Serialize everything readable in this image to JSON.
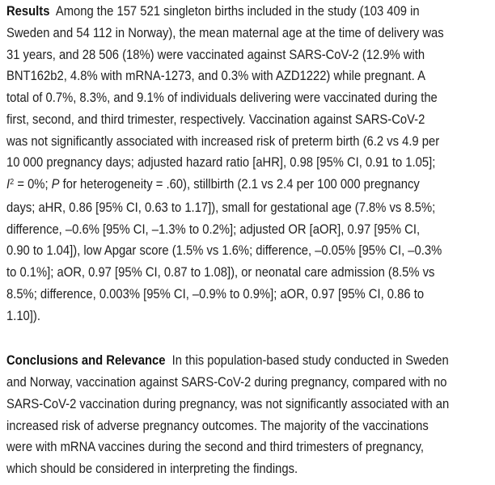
{
  "page": {
    "background_color": "#ffffff",
    "text_color": "#212121"
  },
  "abstract": {
    "sections": [
      {
        "heading": "Results",
        "lines": [
          [
            {
              "t": "Results",
              "b": true
            },
            {
              "t": "  Among the 157 521 singleton births included in the study (103 409 in"
            }
          ],
          [
            {
              "t": "Sweden and 54 112 in Norway), the mean maternal age at the time of delivery was"
            }
          ],
          [
            {
              "t": "31 years, and 28 506 (18%) were vaccinated against SARS-CoV-2 (12.9% with"
            }
          ],
          [
            {
              "t": "BNT162b2, 4.8% with mRNA-1273, and 0.3% with AZD1222) while pregnant. A"
            }
          ],
          [
            {
              "t": "total of 0.7%, 8.3%, and 9.1% of individuals delivering were vaccinated during the"
            }
          ],
          [
            {
              "t": "first, second, and third trimester, respectively. Vaccination against SARS-CoV-2"
            }
          ],
          [
            {
              "t": "was not significantly associated with increased risk of preterm birth (6.2 vs 4.9 per"
            }
          ],
          [
            {
              "t": "10 000 pregnancy days; adjusted hazard ratio [aHR], 0.98 [95% CI, 0.91 to 1.05];"
            }
          ],
          [
            {
              "t": "I",
              "i": true
            },
            {
              "t": "2",
              "sup": true
            },
            {
              "t": " = 0%; "
            },
            {
              "t": "P",
              "i": true
            },
            {
              "t": " for heterogeneity = .60), stillbirth (2.1 vs 2.4 per 100 000 pregnancy"
            }
          ],
          [
            {
              "t": "days; aHR, 0.86 [95% CI, 0.63 to 1.17]), small for gestational age (7.8% vs 8.5%;"
            }
          ],
          [
            {
              "t": "difference, –0.6% [95% CI, –1.3% to 0.2%]; adjusted OR [aOR], 0.97 [95% CI,"
            }
          ],
          [
            {
              "t": "0.90 to 1.04]), low Apgar score (1.5% vs 1.6%; difference, –0.05% [95% CI, –0.3%"
            }
          ],
          [
            {
              "t": "to 0.1%]; aOR, 0.97 [95% CI, 0.87 to 1.08]), or neonatal care admission (8.5% vs"
            }
          ],
          [
            {
              "t": "8.5%; difference, 0.003% [95% CI, –0.9% to 0.9%]; aOR, 0.97 [95% CI, 0.86 to"
            }
          ],
          [
            {
              "t": "1.10])."
            }
          ]
        ]
      },
      {
        "heading": "Conclusions and Relevance",
        "lines": [
          [
            {
              "t": "Conclusions and Relevance",
              "b": true
            },
            {
              "t": "  In this population-based study conducted in Sweden"
            }
          ],
          [
            {
              "t": "and Norway, vaccination against SARS-CoV-2 during pregnancy, compared with no"
            }
          ],
          [
            {
              "t": "SARS-CoV-2 vaccination during pregnancy, was not significantly associated with an"
            }
          ],
          [
            {
              "t": "increased risk of adverse pregnancy outcomes. The majority of the vaccinations"
            }
          ],
          [
            {
              "t": "were with mRNA vaccines during the second and third trimesters of pregnancy,"
            }
          ],
          [
            {
              "t": "which should be considered in interpreting the findings."
            }
          ]
        ]
      }
    ]
  }
}
